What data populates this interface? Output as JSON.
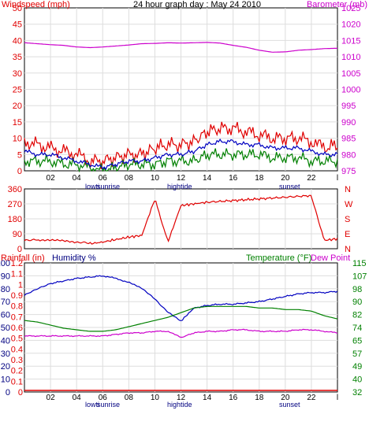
{
  "title": "24 hour graph day : May 24 2010",
  "colors": {
    "wind": "#e00000",
    "gust": "#e00000",
    "avg": "#0000c0",
    "wind_low": "#008000",
    "barometer": "#cc00cc",
    "direction": "#e00000",
    "humidity": "#0000c0",
    "temperature": "#008000",
    "dewpoint": "#cc00cc",
    "rainfall": "#e00000",
    "grid": "#dddddd",
    "blue_label": "#000080"
  },
  "panel1": {
    "left_label": "Windspeed (mph)",
    "right_label": "Barometer (mb)",
    "left_ticks": [
      "0",
      "5",
      "10",
      "15",
      "20",
      "25",
      "30",
      "35",
      "40",
      "45",
      "50"
    ],
    "right_ticks": [
      "975",
      "980",
      "985",
      "990",
      "995",
      "1000",
      "1005",
      "1010",
      "1015",
      "1020",
      "1025"
    ]
  },
  "panel2": {
    "left_ticks": [
      "0",
      "90",
      "180",
      "270",
      "360"
    ],
    "right_ticks": [
      "N",
      "E",
      "S",
      "W",
      "N"
    ]
  },
  "panel3": {
    "rain_label": "Rainfall (in)",
    "humidity_label": "Humidity %",
    "temp_label": "Temperature (°F)",
    "dew_label": "Dew Point",
    "humidity_ticks": [
      "0",
      "10",
      "20",
      "30",
      "40",
      "50",
      "60",
      "70",
      "80",
      "90",
      "100"
    ],
    "rain_ticks": [
      "0",
      "0.1",
      "0.2",
      "0.3",
      "0.4",
      "0.5",
      "0.6",
      "0.7",
      "0.8",
      "0.9",
      "1",
      "1.1",
      "1.2"
    ],
    "right_ticks": [
      "32",
      "40",
      "49",
      "57",
      "65",
      "74",
      "82",
      "90",
      "98",
      "107",
      "115"
    ]
  },
  "x_ticks": [
    "02",
    "04",
    "06",
    "08",
    "10",
    "12",
    "14",
    "16",
    "18",
    "20",
    "22"
  ],
  "x_right_tick": "l",
  "events": [
    "lowti",
    "sunrise",
    "hightide",
    "sunset"
  ],
  "chart_data": [
    {
      "type": "line",
      "title": "24 hour graph day : May 24 2010",
      "xlabel": "",
      "ylabel": "Windspeed (mph)",
      "y2label": "Barometer (mb)",
      "ylim": [
        0,
        50
      ],
      "y2lim": [
        975,
        1025
      ],
      "x": [
        0,
        1,
        2,
        3,
        4,
        5,
        6,
        7,
        8,
        9,
        10,
        11,
        12,
        13,
        14,
        15,
        16,
        17,
        18,
        19,
        20,
        21,
        22,
        23,
        24
      ],
      "series": [
        {
          "name": "",
          "axis": "left",
          "values": [
            9,
            8,
            7,
            6,
            5,
            3,
            3,
            4,
            5,
            5,
            7,
            8,
            8,
            9,
            12,
            13,
            13,
            12,
            11,
            10,
            10,
            10,
            9,
            7,
            8
          ]
        },
        {
          "name": "",
          "axis": "left",
          "values": [
            6,
            5,
            5,
            4,
            3,
            2,
            1,
            2,
            3,
            3,
            4,
            5,
            5,
            6,
            8,
            9,
            9,
            8,
            8,
            7,
            7,
            7,
            6,
            5,
            5
          ]
        },
        {
          "name": "",
          "axis": "left",
          "values": [
            3,
            3,
            3,
            2,
            2,
            1,
            0,
            1,
            2,
            2,
            2,
            3,
            3,
            3,
            5,
            5,
            5,
            5,
            5,
            4,
            4,
            4,
            3,
            3,
            3
          ]
        },
        {
          "name": "",
          "axis": "right",
          "values": [
            1014.3,
            1014,
            1013.7,
            1013.5,
            1013,
            1012.8,
            1013,
            1013.3,
            1013.6,
            1014,
            1014.1,
            1014.3,
            1014.2,
            1014.3,
            1014.4,
            1014.2,
            1013.5,
            1012.9,
            1012,
            1011.4,
            1011.5,
            1012,
            1012.2,
            1012.5,
            1012.6
          ]
        }
      ]
    },
    {
      "type": "scatter",
      "ylabel": "",
      "ylim": [
        0,
        360
      ],
      "x": [
        0,
        1,
        2,
        3,
        4,
        5,
        6,
        7,
        8,
        9,
        10,
        11,
        12,
        13,
        14,
        15,
        16,
        17,
        18,
        19,
        20,
        21,
        22,
        23,
        24
      ],
      "series": [
        {
          "name": "",
          "values": [
            50,
            55,
            50,
            45,
            40,
            30,
            40,
            55,
            70,
            80,
            300,
            40,
            260,
            270,
            280,
            285,
            290,
            295,
            300,
            305,
            310,
            315,
            320,
            50,
            60
          ]
        }
      ]
    },
    {
      "type": "line",
      "ylabel": "Humidity %",
      "y2label": "Temperature (°F)",
      "ylim": [
        0,
        100
      ],
      "y2lim": [
        32,
        115
      ],
      "x": [
        0,
        1,
        2,
        3,
        4,
        5,
        6,
        7,
        8,
        9,
        10,
        11,
        12,
        13,
        14,
        15,
        16,
        17,
        18,
        19,
        20,
        21,
        22,
        23,
        24
      ],
      "series": [
        {
          "name": "",
          "axis": "left",
          "values": [
            75,
            80,
            84,
            86,
            88,
            89,
            90,
            88,
            85,
            80,
            72,
            62,
            55,
            65,
            67,
            68,
            68,
            69,
            70,
            72,
            74,
            76,
            77,
            77,
            78
          ]
        },
        {
          "name": "",
          "axis": "right",
          "values": [
            78,
            77,
            75,
            73,
            72,
            71,
            71,
            72,
            74,
            76,
            78,
            80,
            83,
            86,
            87,
            87,
            87,
            87,
            86,
            86,
            85,
            85,
            84,
            81,
            79
          ]
        },
        {
          "name": "",
          "axis": "right",
          "values": [
            68,
            68,
            68,
            68,
            68,
            68,
            68,
            69,
            70,
            70,
            71,
            71,
            67,
            70,
            71,
            71,
            72,
            72,
            71,
            71,
            71,
            72,
            72,
            71,
            70
          ]
        },
        {
          "name": "",
          "axis": "rain",
          "values": [
            0,
            0,
            0,
            0,
            0,
            0,
            0,
            0,
            0,
            0,
            0,
            0,
            0,
            0,
            0,
            0,
            0,
            0,
            0,
            0,
            0,
            0,
            0,
            0,
            0
          ]
        }
      ]
    }
  ]
}
